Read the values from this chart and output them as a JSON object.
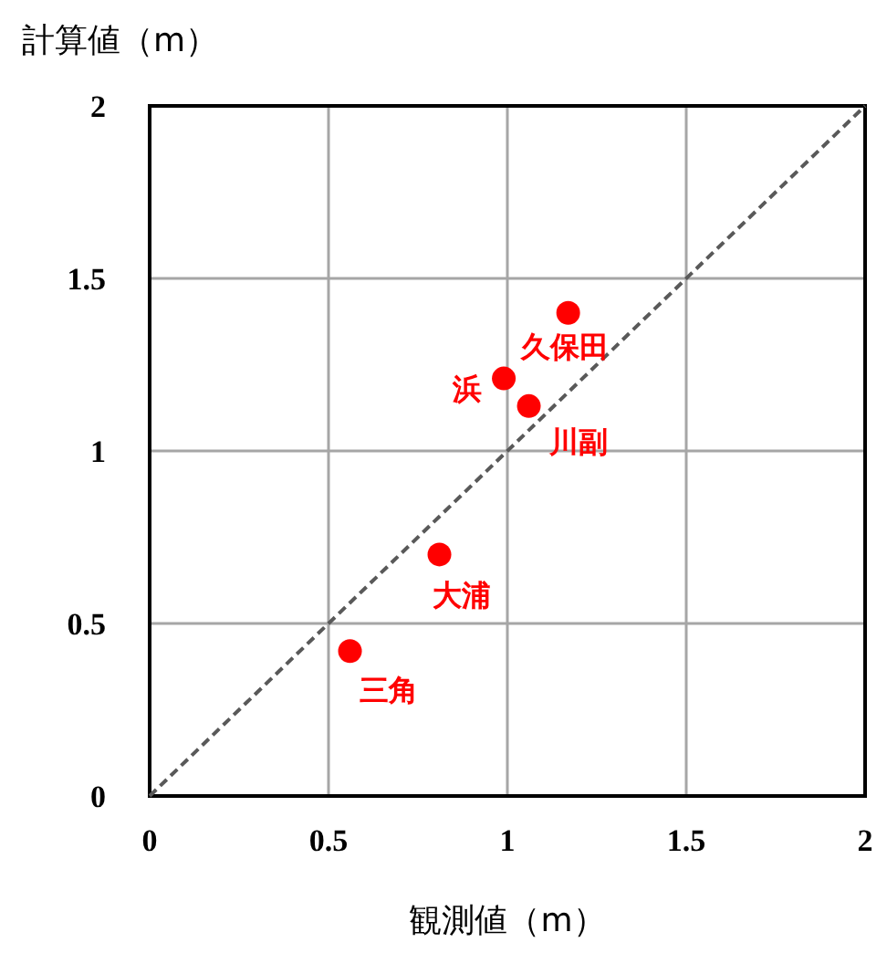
{
  "chart_data": {
    "type": "scatter",
    "xlabel": "観測値（m）",
    "ylabel": "計算値（m）",
    "xlim": [
      0,
      2
    ],
    "ylim": [
      0,
      2
    ],
    "xticks": [
      0,
      0.5,
      1,
      1.5,
      2
    ],
    "yticks": [
      0,
      0.5,
      1,
      1.5,
      2
    ],
    "grid": true,
    "marker": "circle",
    "series": [
      {
        "type": "line",
        "color": "#595959",
        "line_style": "dashed",
        "marker": "none",
        "x": [
          0,
          2
        ],
        "values": [
          0,
          2
        ]
      },
      {
        "color": "#ff0000",
        "x": [
          1.17,
          0.99,
          1.06,
          0.81,
          0.56
        ],
        "values": [
          1.4,
          1.21,
          1.13,
          0.7,
          0.42
        ]
      }
    ],
    "annotations": [
      {
        "text": "久保田",
        "x": 1.17,
        "y": 1.4
      },
      {
        "text": "浜",
        "x": 0.99,
        "y": 1.21
      },
      {
        "text": "川副",
        "x": 1.06,
        "y": 1.13
      },
      {
        "text": "大浦",
        "x": 0.81,
        "y": 0.7
      },
      {
        "text": "三角",
        "x": 0.56,
        "y": 0.42
      }
    ]
  }
}
